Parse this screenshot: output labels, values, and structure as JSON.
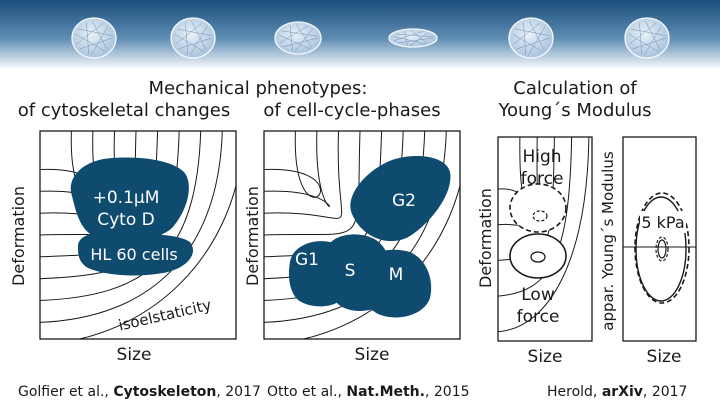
{
  "colors": {
    "banner_top": "#1c4f7c",
    "banner_bottom": "#ffffff",
    "blob_fill": "#0f4a6f",
    "line": "#1a1a1a"
  },
  "banner": {
    "cells": [
      {
        "name": "round-cell",
        "shape": "round"
      },
      {
        "name": "round-cell",
        "shape": "round"
      },
      {
        "name": "mild-ellipse-cell",
        "shape": "mild"
      },
      {
        "name": "flat-ellipse-cell",
        "shape": "flat"
      },
      {
        "name": "round-cell",
        "shape": "round"
      },
      {
        "name": "round-cell",
        "shape": "round"
      }
    ]
  },
  "headings": {
    "mechanical_phenotypes": "Mechanical phenotypes:",
    "cytoskeletal": "of cytoskeletal changes",
    "cell_cycle": "of cell-cycle-phases",
    "calc_line1": "Calculation of",
    "calc_line2": "Young´s Modulus"
  },
  "panel1": {
    "ylabel": "Deformation",
    "xlabel": "Size",
    "blob_top_line1": "+0.1µM",
    "blob_top_line2": "Cyto D",
    "blob_bottom": "HL 60 cells",
    "curve_label": "isoelstaticity"
  },
  "panel2": {
    "ylabel": "Deformation",
    "xlabel": "Size",
    "phases": [
      "G1",
      "S",
      "M",
      "G2"
    ]
  },
  "panel3": {
    "ylabel": "Deformation",
    "xlabel": "Size",
    "high_force_line1": "High",
    "high_force_line2": "force",
    "low_force_line1": "Low",
    "low_force_line2": "force"
  },
  "panel4": {
    "ylabel": "appar. Young´s Modulus",
    "xlabel": "Size",
    "value_label": "5 kPa"
  },
  "citations": {
    "c1_prefix": "Golfier et al., ",
    "c1_journal": "Cytoskeleton",
    "c1_year": ", 2017",
    "c2_prefix": "Otto et al., ",
    "c2_journal": "Nat.Meth.",
    "c2_year": ", 2015",
    "c3_prefix": "Herold, ",
    "c3_journal": "arXiv",
    "c3_year": ", 2017"
  }
}
